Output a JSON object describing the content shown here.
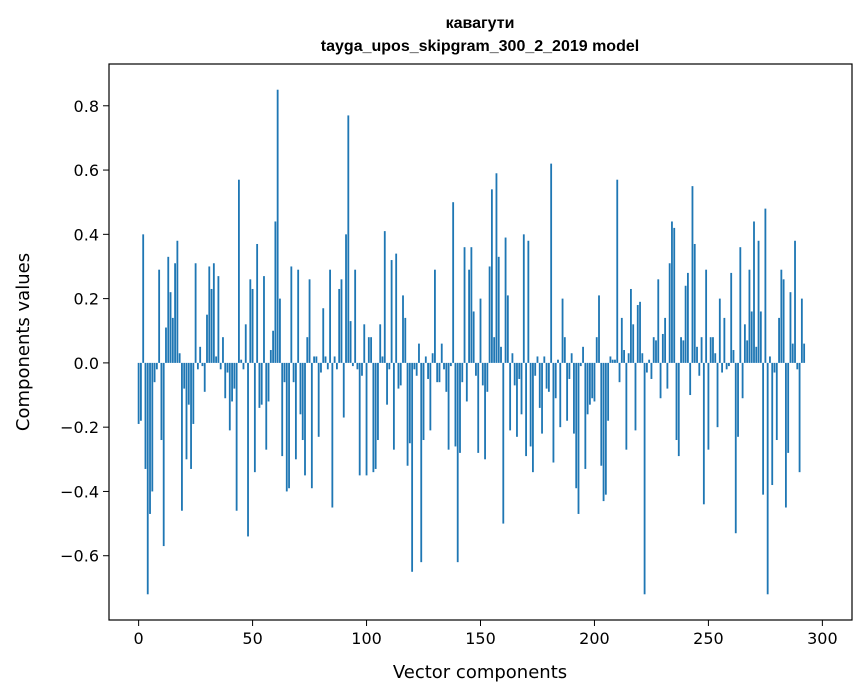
{
  "chart_data": {
    "type": "bar",
    "title_line1": "кавагути",
    "title_line2": "tayga_upos_skipgram_300_2_2019 model",
    "xlabel": "Vector components",
    "ylabel": "Components values",
    "xlim": [
      -13,
      313
    ],
    "ylim": [
      -0.8,
      0.93
    ],
    "xticks": [
      0,
      50,
      100,
      150,
      200,
      250,
      300
    ],
    "xtick_labels": [
      "0",
      "50",
      "100",
      "150",
      "200",
      "250",
      "300"
    ],
    "yticks": [
      -0.6,
      -0.4,
      -0.2,
      0.0,
      0.2,
      0.4,
      0.6,
      0.8
    ],
    "ytick_labels": [
      "−0.6",
      "−0.4",
      "−0.2",
      "0.0",
      "0.2",
      "0.4",
      "0.6",
      "0.8"
    ],
    "bar_color": "#1f77b4",
    "values": [
      -0.19,
      -0.18,
      0.4,
      -0.33,
      -0.72,
      -0.47,
      -0.4,
      -0.06,
      -0.02,
      0.29,
      -0.24,
      -0.57,
      0.11,
      0.33,
      0.22,
      0.14,
      0.31,
      0.38,
      0.03,
      -0.46,
      -0.08,
      -0.3,
      -0.13,
      -0.33,
      -0.19,
      0.31,
      -0.02,
      0.05,
      -0.01,
      -0.09,
      0.15,
      0.3,
      0.23,
      0.31,
      0.02,
      0.27,
      -0.02,
      0.08,
      -0.11,
      -0.03,
      -0.21,
      -0.12,
      -0.08,
      -0.46,
      0.57,
      0.01,
      -0.02,
      0.12,
      -0.54,
      0.26,
      0.23,
      -0.34,
      0.37,
      -0.14,
      -0.13,
      0.27,
      -0.27,
      -0.12,
      0.04,
      0.1,
      0.44,
      0.85,
      0.2,
      -0.29,
      -0.06,
      -0.4,
      -0.39,
      0.3,
      -0.06,
      -0.3,
      0.29,
      -0.16,
      -0.24,
      -0.35,
      0.08,
      0.26,
      -0.39,
      0.02,
      0.02,
      -0.23,
      -0.03,
      0.17,
      0.02,
      -0.02,
      0.29,
      -0.45,
      0.02,
      -0.02,
      0.23,
      0.26,
      -0.17,
      0.4,
      0.77,
      0.13,
      -0.01,
      0.29,
      -0.02,
      -0.35,
      -0.04,
      0.12,
      -0.35,
      0.08,
      0.08,
      -0.34,
      -0.33,
      -0.24,
      0.12,
      0.02,
      0.41,
      -0.13,
      -0.02,
      0.32,
      -0.27,
      0.34,
      -0.08,
      -0.07,
      0.21,
      0.14,
      -0.32,
      -0.25,
      -0.65,
      -0.02,
      -0.04,
      0.06,
      -0.62,
      -0.24,
      0.02,
      -0.05,
      -0.21,
      0.03,
      0.29,
      -0.06,
      -0.06,
      0.06,
      -0.02,
      -0.09,
      -0.27,
      -0.01,
      0.5,
      -0.26,
      -0.62,
      -0.28,
      -0.06,
      0.36,
      -0.12,
      0.29,
      0.36,
      0.16,
      -0.04,
      -0.28,
      0.2,
      -0.07,
      -0.3,
      -0.09,
      0.3,
      0.54,
      0.08,
      0.59,
      0.33,
      0.05,
      -0.5,
      0.39,
      0.21,
      -0.21,
      0.03,
      -0.07,
      -0.23,
      -0.05,
      -0.16,
      0.4,
      -0.29,
      0.38,
      -0.26,
      -0.34,
      -0.04,
      0.02,
      -0.14,
      -0.22,
      0.02,
      -0.08,
      -0.09,
      0.62,
      -0.31,
      -0.11,
      0.01,
      -0.2,
      0.2,
      0.08,
      -0.18,
      -0.05,
      0.03,
      -0.22,
      -0.39,
      -0.47,
      -0.01,
      0.05,
      -0.33,
      -0.16,
      -0.13,
      -0.11,
      -0.12,
      0.08,
      0.21,
      -0.32,
      -0.43,
      -0.41,
      -0.18,
      0.02,
      0.01,
      0.01,
      0.57,
      -0.06,
      0.14,
      0.04,
      -0.27,
      0.03,
      0.23,
      0.12,
      -0.21,
      0.18,
      0.19,
      0.03,
      -0.72,
      -0.03,
      0.01,
      -0.05,
      0.08,
      0.07,
      0.26,
      -0.11,
      0.09,
      0.14,
      -0.08,
      0.31,
      0.44,
      0.42,
      -0.24,
      -0.29,
      0.08,
      0.07,
      0.24,
      0.28,
      -0.1,
      0.55,
      0.37,
      0.05,
      -0.04,
      0.08,
      -0.44,
      0.29,
      -0.27,
      0.08,
      0.08,
      0.03,
      -0.2,
      0.2,
      -0.03,
      0.14,
      -0.02,
      -0.01,
      0.28,
      0.04,
      -0.53,
      -0.23,
      0.36,
      -0.11,
      0.12,
      0.07,
      0.29,
      0.16,
      0.44,
      0.05,
      0.38,
      0.16,
      -0.41,
      0.48,
      -0.72,
      0.02,
      -0.38,
      -0.03,
      -0.24,
      0.14,
      0.29,
      0.26,
      -0.45,
      -0.28,
      0.22,
      0.06,
      0.38,
      -0.02,
      -0.34,
      0.2,
      0.06
    ]
  }
}
